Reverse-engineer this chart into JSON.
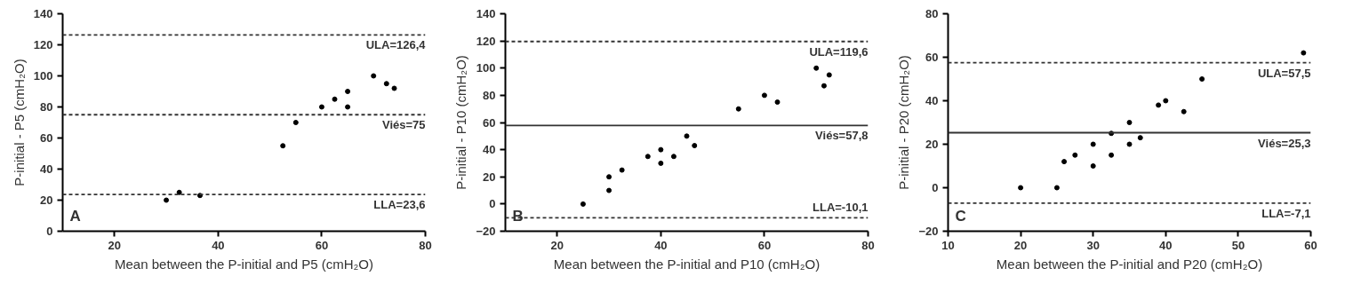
{
  "chart_data": [
    {
      "type": "scatter",
      "xlabel": "Mean between the P-initial and P5 (cmH₂O)",
      "ylabel": "P-initial - P5 (cmH₂O)",
      "annotations": [
        "A"
      ],
      "marker": "circle",
      "grid": false,
      "xlim": [
        10,
        80
      ],
      "xticks": [
        20,
        40,
        60,
        80
      ],
      "ylim": [
        0,
        140
      ],
      "yticks": [
        0,
        20,
        40,
        60,
        80,
        100,
        120,
        140
      ],
      "series": [
        {
          "color": "#000000",
          "x": [
            30,
            32.5,
            36.5,
            52.5,
            55,
            60,
            62.5,
            65,
            65,
            70,
            72.5,
            74
          ],
          "values": [
            20,
            25,
            23,
            55,
            70,
            80,
            85,
            90,
            80,
            100,
            95,
            92
          ]
        }
      ],
      "ref_lines": [
        {
          "axis": "y",
          "value": 126.4,
          "label": "ULA=126,4",
          "line_style": "dashed",
          "color": "#333333"
        },
        {
          "axis": "y",
          "value": 75,
          "label": "Viés=75",
          "line_style": "dashed",
          "color": "#333333"
        },
        {
          "axis": "y",
          "value": 23.6,
          "label": "LLA=23,6",
          "line_style": "dashed",
          "color": "#333333"
        }
      ]
    },
    {
      "type": "scatter",
      "xlabel": "Mean between the P-initial and P10 (cmH₂O)",
      "ylabel": "P-initial - P10 (cmH₂O)",
      "annotations": [
        "B"
      ],
      "marker": "circle",
      "grid": false,
      "xlim": [
        10,
        80
      ],
      "xticks": [
        20,
        40,
        60,
        80
      ],
      "ylim": [
        -20,
        140
      ],
      "yticks": [
        -20,
        0,
        20,
        40,
        60,
        80,
        100,
        120,
        140
      ],
      "series": [
        {
          "color": "#000000",
          "x": [
            25,
            30,
            30,
            32.5,
            37.5,
            40,
            40,
            42.5,
            45,
            46.5,
            55,
            60,
            62.5,
            70,
            71.5,
            72.5
          ],
          "values": [
            0,
            20,
            10,
            25,
            35,
            40,
            30,
            35,
            50,
            43,
            70,
            80,
            75,
            100,
            87,
            95
          ]
        }
      ],
      "ref_lines": [
        {
          "axis": "y",
          "value": 119.6,
          "label": "ULA=119,6",
          "line_style": "dashed",
          "color": "#333333"
        },
        {
          "axis": "y",
          "value": 57.8,
          "label": "Viés=57,8",
          "line_style": "solid",
          "color": "#333333"
        },
        {
          "axis": "y",
          "value": -10.1,
          "label": "LLA=-10,1",
          "line_style": "dashed",
          "color": "#333333"
        }
      ]
    },
    {
      "type": "scatter",
      "xlabel": "Mean between the P-initial and P20 (cmH₂O)",
      "ylabel": "P-initial - P20 (cmH₂O)",
      "annotations": [
        "C"
      ],
      "marker": "circle",
      "grid": false,
      "xlim": [
        10,
        60
      ],
      "xticks": [
        10,
        20,
        30,
        40,
        50,
        60
      ],
      "ylim": [
        -20,
        80
      ],
      "yticks": [
        -20,
        0,
        20,
        40,
        60,
        80
      ],
      "series": [
        {
          "color": "#000000",
          "x": [
            20,
            25,
            26,
            27.5,
            30,
            30,
            32.5,
            32.5,
            35,
            35,
            36.5,
            39,
            40,
            42.5,
            45,
            59
          ],
          "values": [
            0,
            0,
            12,
            15,
            20,
            10,
            25,
            15,
            30,
            20,
            23,
            38,
            40,
            35,
            50,
            62
          ]
        }
      ],
      "ref_lines": [
        {
          "axis": "y",
          "value": 57.5,
          "label": "ULA=57,5",
          "line_style": "dashed",
          "color": "#333333"
        },
        {
          "axis": "y",
          "value": 25.3,
          "label": "Viés=25,3",
          "line_style": "solid",
          "color": "#333333"
        },
        {
          "axis": "y",
          "value": -7.1,
          "label": "LLA=-7,1",
          "line_style": "dashed",
          "color": "#333333"
        }
      ]
    }
  ]
}
